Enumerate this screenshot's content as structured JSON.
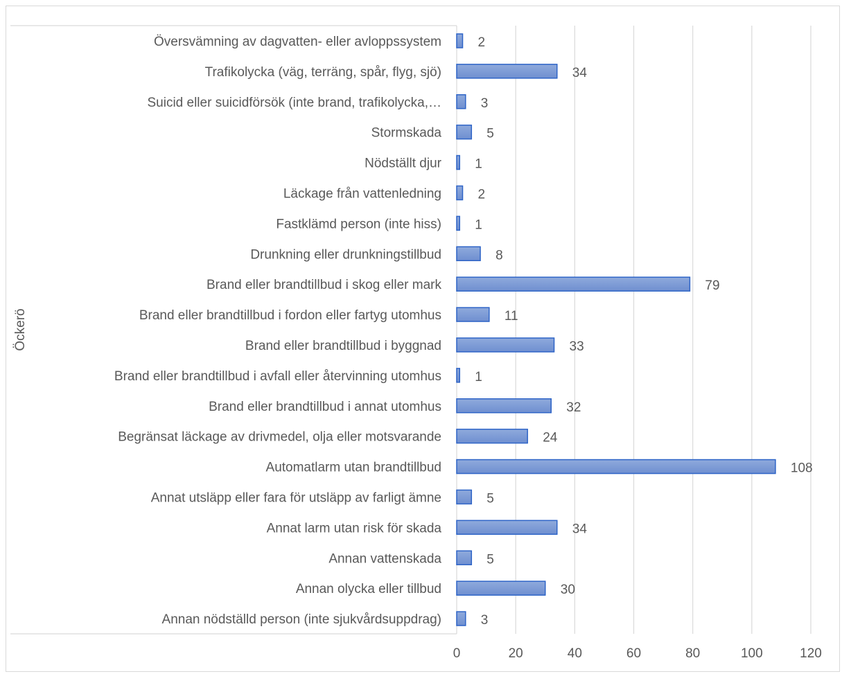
{
  "chart_data": {
    "type": "bar",
    "orientation": "horizontal",
    "group_label": "Öckerö",
    "categories": [
      "Översvämning av dagvatten- eller avloppssystem",
      "Trafikolycka (väg, terräng, spår, flyg, sjö)",
      "Suicid eller suicidförsök (inte brand, trafikolycka,…",
      "Stormskada",
      "Nödställt djur",
      "Läckage från vattenledning",
      "Fastklämd person (inte hiss)",
      "Drunkning eller drunkningstillbud",
      "Brand eller brandtillbud i skog eller mark",
      "Brand eller brandtillbud i fordon eller fartyg utomhus",
      "Brand eller brandtillbud i byggnad",
      "Brand eller brandtillbud i avfall eller återvinning utomhus",
      "Brand eller brandtillbud i annat utomhus",
      "Begränsat läckage av drivmedel, olja eller motsvarande",
      "Automatlarm utan brandtillbud",
      "Annat utsläpp eller fara för utsläpp av farligt ämne",
      "Annat larm utan risk för skada",
      "Annan vattenskada",
      "Annan olycka eller tillbud",
      "Annan nödställd person (inte sjukvårdsuppdrag)"
    ],
    "values": [
      2,
      34,
      3,
      5,
      1,
      2,
      1,
      8,
      79,
      11,
      33,
      1,
      32,
      24,
      108,
      5,
      34,
      5,
      30,
      3
    ],
    "xlim": [
      0,
      120
    ],
    "xticks": [
      0,
      20,
      40,
      60,
      80,
      100,
      120
    ],
    "grid": true,
    "legend": "none",
    "data_labels": true,
    "colors": {
      "bar_fill_start": "#8faadc",
      "bar_fill_end": "#6f8fd0",
      "bar_border": "#2e64c7",
      "gridline": "#d9d9d9",
      "text": "#595959",
      "frame": "#d9d9d9"
    }
  }
}
